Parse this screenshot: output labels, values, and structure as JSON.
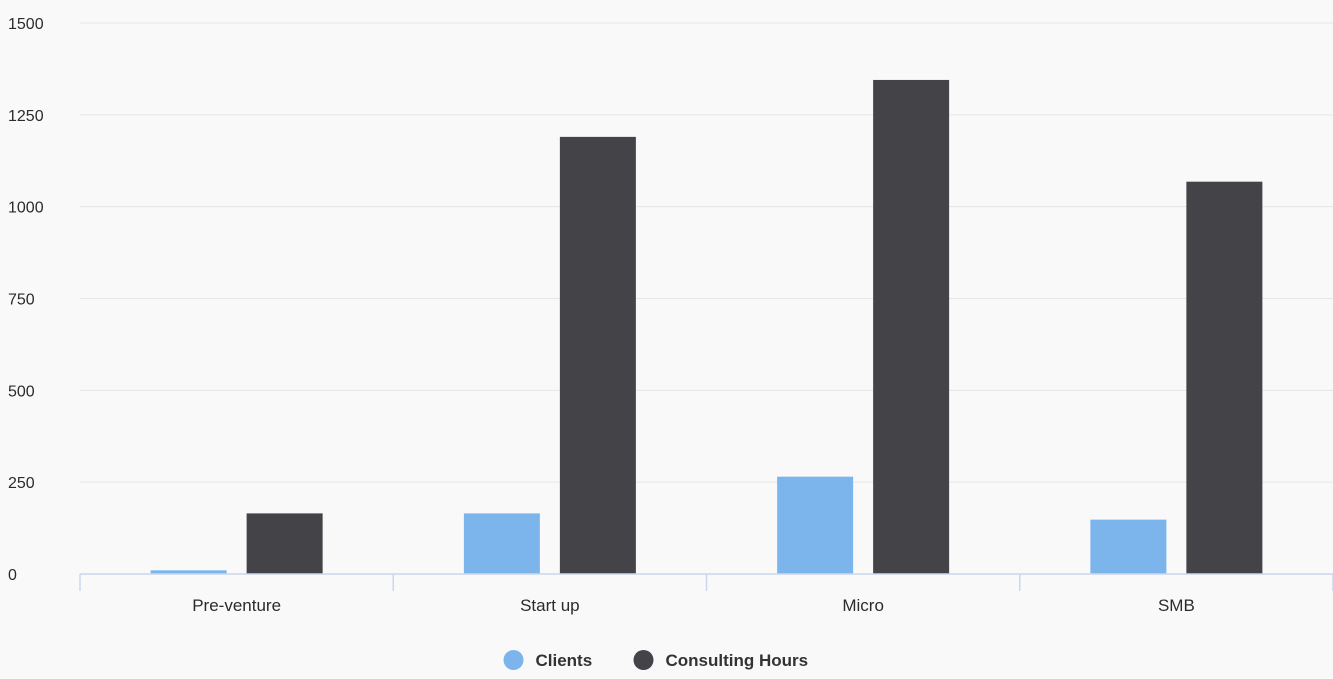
{
  "chart_data": {
    "type": "bar",
    "title": "",
    "xlabel": "",
    "ylabel": "",
    "categories": [
      "Pre-venture",
      "Start up",
      "Micro",
      "SMB"
    ],
    "series": [
      {
        "name": "Clients",
        "color": "#7cb5ec",
        "values": [
          10,
          165,
          265,
          148
        ]
      },
      {
        "name": "Consulting Hours",
        "color": "#434348",
        "values": [
          165,
          1190,
          1345,
          1068
        ]
      }
    ],
    "ylim": [
      0,
      1500
    ],
    "yticks": [
      0,
      250,
      500,
      750,
      1000,
      1250,
      1500
    ],
    "grid": true,
    "legend": "bottom-center"
  }
}
